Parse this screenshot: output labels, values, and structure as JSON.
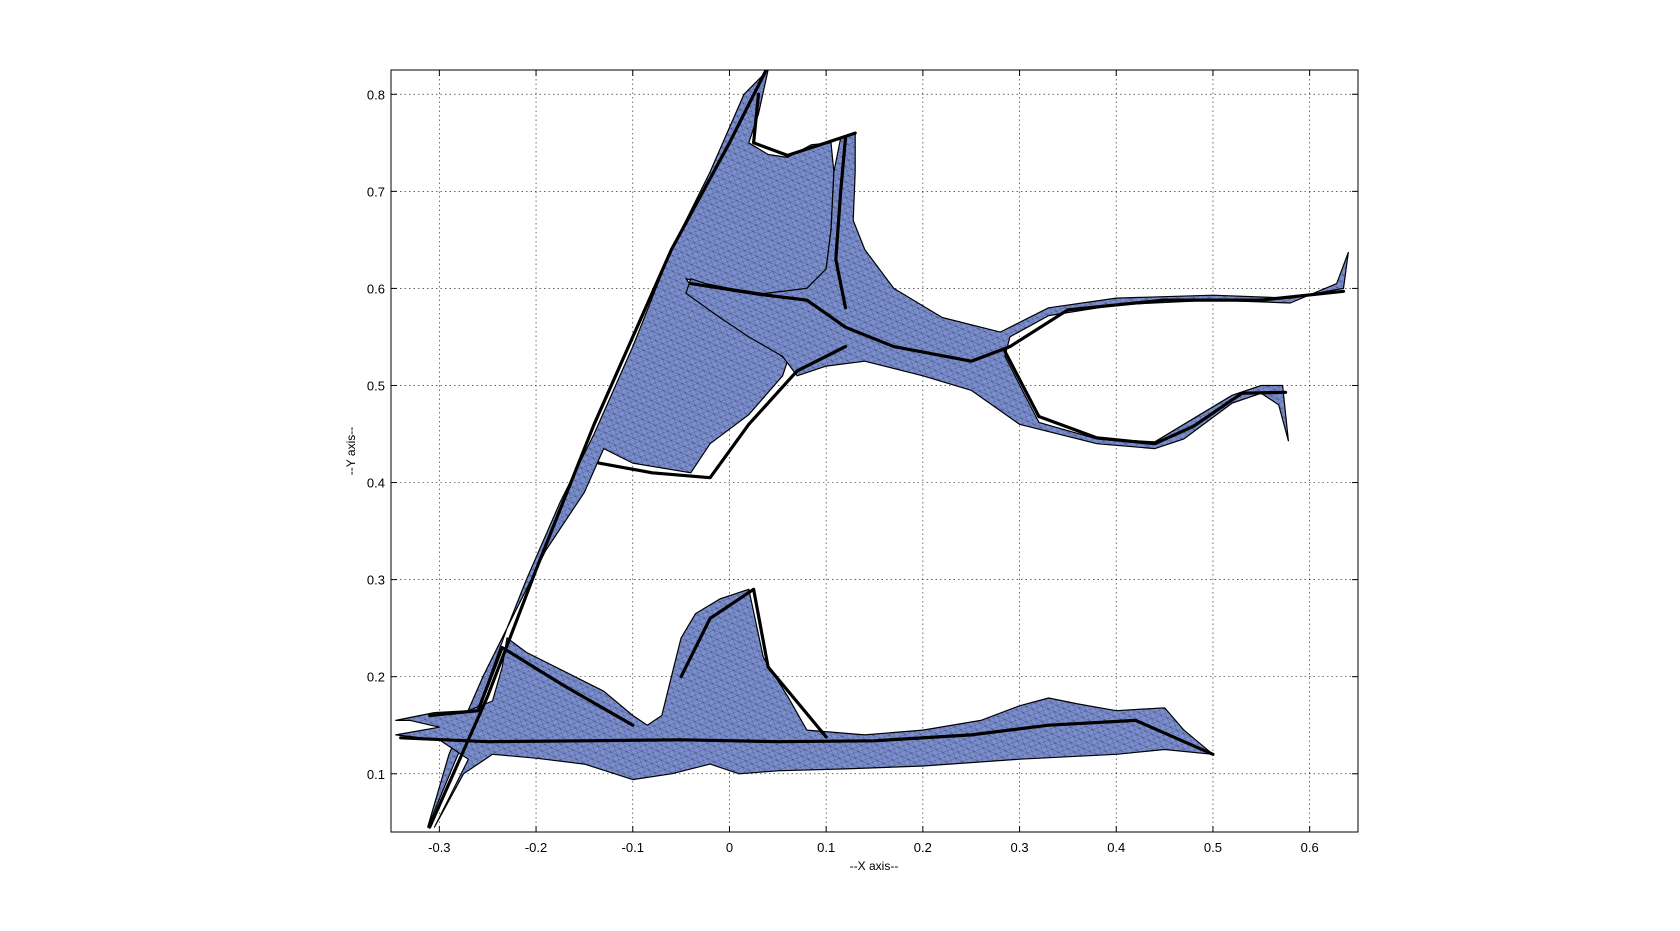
{
  "chart_data": {
    "type": "area",
    "title": "",
    "xlabel": "--X axis--",
    "ylabel": "--Y axis--",
    "xlim": [
      -0.35,
      0.65
    ],
    "ylim": [
      0.04,
      0.825
    ],
    "xticks": [
      -0.3,
      -0.2,
      -0.1,
      0,
      0.1,
      0.2,
      0.3,
      0.4,
      0.5,
      0.6
    ],
    "yticks": [
      0.1,
      0.2,
      0.3,
      0.4,
      0.5,
      0.6,
      0.7,
      0.8
    ],
    "xtick_labels": [
      "-0.3",
      "-0.2",
      "-0.1",
      "0",
      "0.1",
      "0.2",
      "0.3",
      "0.4",
      "0.5",
      "0.6"
    ],
    "ytick_labels": [
      "0.1",
      "0.2",
      "0.3",
      "0.4",
      "0.5",
      "0.6",
      "0.7",
      "0.8"
    ],
    "grid": true,
    "grid_style": "dotted",
    "legend": "none",
    "face_color": "#7b8fd0",
    "edge_color": "#000000",
    "regions": [
      {
        "id": "upper-network",
        "outline": [
          [
            -0.312,
            0.045
          ],
          [
            -0.29,
            0.12
          ],
          [
            -0.255,
            0.2
          ],
          [
            -0.225,
            0.26
          ],
          [
            -0.19,
            0.33
          ],
          [
            -0.15,
            0.39
          ],
          [
            -0.13,
            0.435
          ],
          [
            -0.1,
            0.42
          ],
          [
            -0.04,
            0.41
          ],
          [
            -0.02,
            0.44
          ],
          [
            0.02,
            0.47
          ],
          [
            0.055,
            0.51
          ],
          [
            0.06,
            0.525
          ],
          [
            0.03,
            0.55
          ],
          [
            -0.005,
            0.575
          ],
          [
            -0.035,
            0.597
          ],
          [
            -0.045,
            0.61
          ],
          [
            -0.025,
            0.605
          ],
          [
            0.0,
            0.6
          ],
          [
            0.04,
            0.594
          ],
          [
            0.08,
            0.6
          ],
          [
            0.1,
            0.62
          ],
          [
            0.105,
            0.66
          ],
          [
            0.108,
            0.72
          ],
          [
            0.105,
            0.75
          ],
          [
            0.085,
            0.748
          ],
          [
            0.06,
            0.735
          ],
          [
            0.04,
            0.738
          ],
          [
            0.02,
            0.75
          ],
          [
            0.03,
            0.78
          ],
          [
            0.04,
            0.825
          ],
          [
            0.015,
            0.8
          ],
          [
            -0.02,
            0.72
          ],
          [
            -0.06,
            0.64
          ],
          [
            -0.1,
            0.54
          ],
          [
            -0.14,
            0.45
          ],
          [
            -0.175,
            0.38
          ],
          [
            -0.21,
            0.3
          ],
          [
            -0.23,
            0.25
          ],
          [
            -0.255,
            0.18
          ],
          [
            -0.285,
            0.11
          ]
        ]
      },
      {
        "id": "main-junction",
        "outline": [
          [
            -0.04,
            0.61
          ],
          [
            -0.01,
            0.6
          ],
          [
            0.03,
            0.594
          ],
          [
            0.08,
            0.6
          ],
          [
            0.1,
            0.62
          ],
          [
            0.105,
            0.66
          ],
          [
            0.108,
            0.72
          ],
          [
            0.115,
            0.755
          ],
          [
            0.13,
            0.76
          ],
          [
            0.13,
            0.72
          ],
          [
            0.128,
            0.67
          ],
          [
            0.14,
            0.64
          ],
          [
            0.17,
            0.6
          ],
          [
            0.22,
            0.57
          ],
          [
            0.28,
            0.555
          ],
          [
            0.33,
            0.58
          ],
          [
            0.4,
            0.59
          ],
          [
            0.5,
            0.593
          ],
          [
            0.58,
            0.59
          ],
          [
            0.635,
            0.6
          ],
          [
            0.64,
            0.637
          ],
          [
            0.628,
            0.605
          ],
          [
            0.58,
            0.585
          ],
          [
            0.5,
            0.588
          ],
          [
            0.4,
            0.583
          ],
          [
            0.33,
            0.572
          ],
          [
            0.29,
            0.55
          ],
          [
            0.285,
            0.53
          ],
          [
            0.32,
            0.462
          ],
          [
            0.38,
            0.445
          ],
          [
            0.44,
            0.442
          ],
          [
            0.47,
            0.46
          ],
          [
            0.52,
            0.49
          ],
          [
            0.55,
            0.5
          ],
          [
            0.572,
            0.5
          ],
          [
            0.578,
            0.443
          ],
          [
            0.568,
            0.48
          ],
          [
            0.55,
            0.492
          ],
          [
            0.52,
            0.482
          ],
          [
            0.47,
            0.445
          ],
          [
            0.44,
            0.435
          ],
          [
            0.38,
            0.44
          ],
          [
            0.3,
            0.46
          ],
          [
            0.25,
            0.495
          ],
          [
            0.2,
            0.51
          ],
          [
            0.14,
            0.525
          ],
          [
            0.1,
            0.52
          ],
          [
            0.07,
            0.51
          ],
          [
            0.055,
            0.53
          ],
          [
            0.02,
            0.55
          ],
          [
            -0.01,
            0.57
          ],
          [
            -0.045,
            0.595
          ]
        ]
      },
      {
        "id": "lower-network",
        "outline": [
          [
            -0.345,
            0.155
          ],
          [
            -0.305,
            0.163
          ],
          [
            -0.27,
            0.165
          ],
          [
            -0.245,
            0.175
          ],
          [
            -0.235,
            0.21
          ],
          [
            -0.23,
            0.24
          ],
          [
            -0.21,
            0.225
          ],
          [
            -0.17,
            0.205
          ],
          [
            -0.13,
            0.185
          ],
          [
            -0.1,
            0.16
          ],
          [
            -0.085,
            0.15
          ],
          [
            -0.07,
            0.16
          ],
          [
            -0.06,
            0.2
          ],
          [
            -0.05,
            0.24
          ],
          [
            -0.035,
            0.265
          ],
          [
            -0.01,
            0.28
          ],
          [
            0.02,
            0.29
          ],
          [
            0.035,
            0.22
          ],
          [
            0.06,
            0.18
          ],
          [
            0.08,
            0.145
          ],
          [
            0.14,
            0.14
          ],
          [
            0.2,
            0.145
          ],
          [
            0.26,
            0.155
          ],
          [
            0.3,
            0.17
          ],
          [
            0.33,
            0.178
          ],
          [
            0.36,
            0.172
          ],
          [
            0.4,
            0.165
          ],
          [
            0.45,
            0.168
          ],
          [
            0.47,
            0.145
          ],
          [
            0.5,
            0.12
          ],
          [
            0.45,
            0.125
          ],
          [
            0.4,
            0.12
          ],
          [
            0.3,
            0.115
          ],
          [
            0.2,
            0.108
          ],
          [
            0.12,
            0.105
          ],
          [
            0.05,
            0.103
          ],
          [
            0.01,
            0.1
          ],
          [
            -0.02,
            0.11
          ],
          [
            -0.06,
            0.1
          ],
          [
            -0.1,
            0.094
          ],
          [
            -0.15,
            0.11
          ],
          [
            -0.2,
            0.116
          ],
          [
            -0.245,
            0.12
          ],
          [
            -0.275,
            0.1
          ],
          [
            -0.305,
            0.045
          ],
          [
            -0.27,
            0.115
          ],
          [
            -0.3,
            0.135
          ],
          [
            -0.345,
            0.14
          ],
          [
            -0.3,
            0.148
          ],
          [
            -0.33,
            0.155
          ]
        ]
      }
    ],
    "ridges": [
      [
        [
          -0.31,
          0.045
        ],
        [
          -0.25,
          0.18
        ],
        [
          -0.2,
          0.31
        ],
        [
          -0.14,
          0.46
        ],
        [
          -0.06,
          0.64
        ],
        [
          0.0,
          0.75
        ],
        [
          0.038,
          0.825
        ]
      ],
      [
        [
          -0.34,
          0.137
        ],
        [
          -0.25,
          0.133
        ],
        [
          -0.15,
          0.134
        ],
        [
          -0.05,
          0.135
        ],
        [
          0.05,
          0.133
        ],
        [
          0.15,
          0.134
        ],
        [
          0.25,
          0.14
        ],
        [
          0.33,
          0.15
        ],
        [
          0.42,
          0.155
        ],
        [
          0.5,
          0.12
        ]
      ],
      [
        [
          -0.04,
          0.605
        ],
        [
          0.03,
          0.594
        ],
        [
          0.08,
          0.588
        ],
        [
          0.12,
          0.56
        ],
        [
          0.17,
          0.54
        ],
        [
          0.25,
          0.525
        ],
        [
          0.29,
          0.54
        ],
        [
          0.35,
          0.578
        ],
        [
          0.45,
          0.588
        ],
        [
          0.55,
          0.588
        ],
        [
          0.635,
          0.597
        ]
      ],
      [
        [
          0.12,
          0.755
        ],
        [
          0.115,
          0.7
        ],
        [
          0.11,
          0.63
        ],
        [
          0.12,
          0.58
        ]
      ],
      [
        [
          0.285,
          0.535
        ],
        [
          0.32,
          0.468
        ],
        [
          0.38,
          0.446
        ],
        [
          0.44,
          0.44
        ],
        [
          0.48,
          0.458
        ],
        [
          0.53,
          0.492
        ],
        [
          0.575,
          0.493
        ]
      ],
      [
        [
          -0.135,
          0.42
        ],
        [
          -0.08,
          0.41
        ],
        [
          -0.02,
          0.405
        ],
        [
          0.02,
          0.46
        ],
        [
          0.07,
          0.515
        ],
        [
          0.12,
          0.54
        ]
      ],
      [
        [
          -0.31,
          0.16
        ],
        [
          -0.26,
          0.165
        ],
        [
          -0.235,
          0.23
        ],
        [
          -0.17,
          0.19
        ],
        [
          -0.1,
          0.15
        ]
      ],
      [
        [
          -0.05,
          0.2
        ],
        [
          -0.02,
          0.26
        ],
        [
          0.025,
          0.29
        ],
        [
          0.04,
          0.21
        ],
        [
          0.1,
          0.138
        ]
      ],
      [
        [
          0.03,
          0.8
        ],
        [
          0.025,
          0.75
        ],
        [
          0.06,
          0.737
        ],
        [
          0.1,
          0.75
        ],
        [
          0.13,
          0.76
        ]
      ]
    ]
  }
}
